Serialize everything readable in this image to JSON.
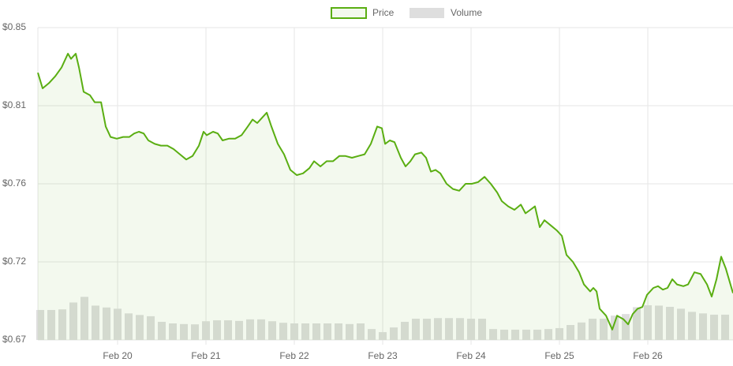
{
  "chart_data": {
    "type": "line",
    "xlim": [
      19.098,
      26.964
    ],
    "xticks": [
      {
        "value": 20,
        "label": "Feb 20"
      },
      {
        "value": 21,
        "label": "Feb 21"
      },
      {
        "value": 22,
        "label": "Feb 22"
      },
      {
        "value": 23,
        "label": "Feb 23"
      },
      {
        "value": 24,
        "label": "Feb 24"
      },
      {
        "value": 25,
        "label": "Feb 25"
      },
      {
        "value": 26,
        "label": "Feb 26"
      }
    ],
    "ylim": [
      0.67,
      0.85
    ],
    "yticks": [
      {
        "value": 0.67,
        "label": "$0.67"
      },
      {
        "value": 0.715,
        "label": "$0.72"
      },
      {
        "value": 0.76,
        "label": "$0.76"
      },
      {
        "value": 0.805,
        "label": "$0.81"
      },
      {
        "value": 0.85,
        "label": "$0.85"
      }
    ],
    "y2lim": [
      0,
      100
    ],
    "grid": true,
    "legend": "top",
    "series": [
      {
        "name": "Price",
        "type": "line",
        "color": "#5aae12",
        "fill": "rgba(90,174,18,0.07)",
        "x": [
          19.098,
          19.152,
          19.223,
          19.295,
          19.366,
          19.438,
          19.473,
          19.527,
          19.563,
          19.616,
          19.688,
          19.741,
          19.813,
          19.866,
          19.92,
          19.991,
          20.063,
          20.134,
          20.188,
          20.241,
          20.295,
          20.348,
          20.42,
          20.491,
          20.563,
          20.634,
          20.705,
          20.777,
          20.848,
          20.92,
          20.973,
          21.009,
          21.08,
          21.134,
          21.188,
          21.259,
          21.33,
          21.402,
          21.473,
          21.527,
          21.58,
          21.634,
          21.688,
          21.741,
          21.813,
          21.884,
          21.955,
          22.027,
          22.098,
          22.17,
          22.223,
          22.295,
          22.366,
          22.438,
          22.509,
          22.58,
          22.652,
          22.723,
          22.795,
          22.866,
          22.938,
          22.991,
          23.027,
          23.08,
          23.134,
          23.205,
          23.259,
          23.313,
          23.366,
          23.438,
          23.491,
          23.545,
          23.598,
          23.652,
          23.723,
          23.795,
          23.866,
          23.938,
          24.009,
          24.08,
          24.152,
          24.223,
          24.295,
          24.348,
          24.42,
          24.491,
          24.563,
          24.616,
          24.67,
          24.723,
          24.777,
          24.83,
          24.902,
          24.973,
          25.027,
          25.08,
          25.152,
          25.223,
          25.277,
          25.348,
          25.384,
          25.42,
          25.455,
          25.527,
          25.598,
          25.652,
          25.723,
          25.777,
          25.83,
          25.884,
          25.938,
          25.991,
          26.063,
          26.116,
          26.17,
          26.223,
          26.277,
          26.33,
          26.402,
          26.455,
          26.527,
          26.598,
          26.67,
          26.723,
          26.777,
          26.83,
          26.884,
          26.964
        ],
        "values": [
          0.824,
          0.815,
          0.818,
          0.822,
          0.827,
          0.835,
          0.832,
          0.835,
          0.827,
          0.813,
          0.811,
          0.807,
          0.807,
          0.793,
          0.787,
          0.786,
          0.787,
          0.787,
          0.789,
          0.79,
          0.789,
          0.785,
          0.783,
          0.782,
          0.782,
          0.78,
          0.777,
          0.774,
          0.776,
          0.782,
          0.79,
          0.788,
          0.79,
          0.789,
          0.785,
          0.786,
          0.786,
          0.788,
          0.793,
          0.797,
          0.795,
          0.798,
          0.801,
          0.793,
          0.783,
          0.777,
          0.768,
          0.765,
          0.766,
          0.769,
          0.773,
          0.77,
          0.773,
          0.773,
          0.776,
          0.776,
          0.775,
          0.776,
          0.777,
          0.783,
          0.793,
          0.792,
          0.783,
          0.785,
          0.784,
          0.775,
          0.77,
          0.773,
          0.777,
          0.778,
          0.775,
          0.767,
          0.768,
          0.766,
          0.76,
          0.757,
          0.756,
          0.76,
          0.76,
          0.761,
          0.764,
          0.76,
          0.755,
          0.75,
          0.747,
          0.745,
          0.748,
          0.743,
          0.745,
          0.747,
          0.735,
          0.739,
          0.736,
          0.733,
          0.73,
          0.719,
          0.715,
          0.709,
          0.702,
          0.698,
          0.7,
          0.698,
          0.688,
          0.684,
          0.676,
          0.684,
          0.682,
          0.679,
          0.685,
          0.688,
          0.689,
          0.696,
          0.7,
          0.701,
          0.699,
          0.7,
          0.705,
          0.702,
          0.701,
          0.702,
          0.709,
          0.708,
          0.702,
          0.695,
          0.705,
          0.718,
          0.711,
          0.697
        ]
      },
      {
        "name": "Volume",
        "type": "bar",
        "axis": "y2",
        "color": "#dedede",
        "x": [
          19.125,
          19.25,
          19.375,
          19.5,
          19.625,
          19.75,
          19.875,
          20,
          20.125,
          20.25,
          20.375,
          20.5,
          20.625,
          20.75,
          20.875,
          21,
          21.125,
          21.25,
          21.375,
          21.5,
          21.625,
          21.75,
          21.875,
          22,
          22.125,
          22.25,
          22.375,
          22.5,
          22.625,
          22.75,
          22.875,
          23,
          23.125,
          23.25,
          23.375,
          23.5,
          23.625,
          23.75,
          23.875,
          24,
          24.125,
          24.25,
          24.375,
          24.5,
          24.625,
          24.75,
          24.875,
          25,
          25.125,
          25.25,
          25.375,
          25.5,
          25.625,
          25.75,
          25.875,
          26,
          26.125,
          26.25,
          26.375,
          26.5,
          26.625,
          26.75,
          26.875
        ],
        "values": [
          9.6,
          9.6,
          9.8,
          12,
          13.8,
          11,
          10.4,
          10,
          8.5,
          8,
          7.6,
          5.8,
          5.3,
          5.1,
          5,
          6,
          6.3,
          6.3,
          6.1,
          6.6,
          6.6,
          6,
          5.5,
          5.3,
          5.3,
          5.3,
          5.3,
          5.3,
          5.1,
          5.3,
          3.5,
          2.5,
          4,
          5.8,
          6.8,
          6.8,
          7,
          7,
          7,
          6.8,
          6.8,
          3.5,
          3.3,
          3.3,
          3.3,
          3.3,
          3.5,
          3.8,
          4.8,
          5.6,
          6.8,
          6.8,
          7.8,
          8.3,
          10.5,
          11.1,
          11,
          10.6,
          10,
          9,
          8.5,
          8.1,
          8.1
        ]
      }
    ]
  }
}
